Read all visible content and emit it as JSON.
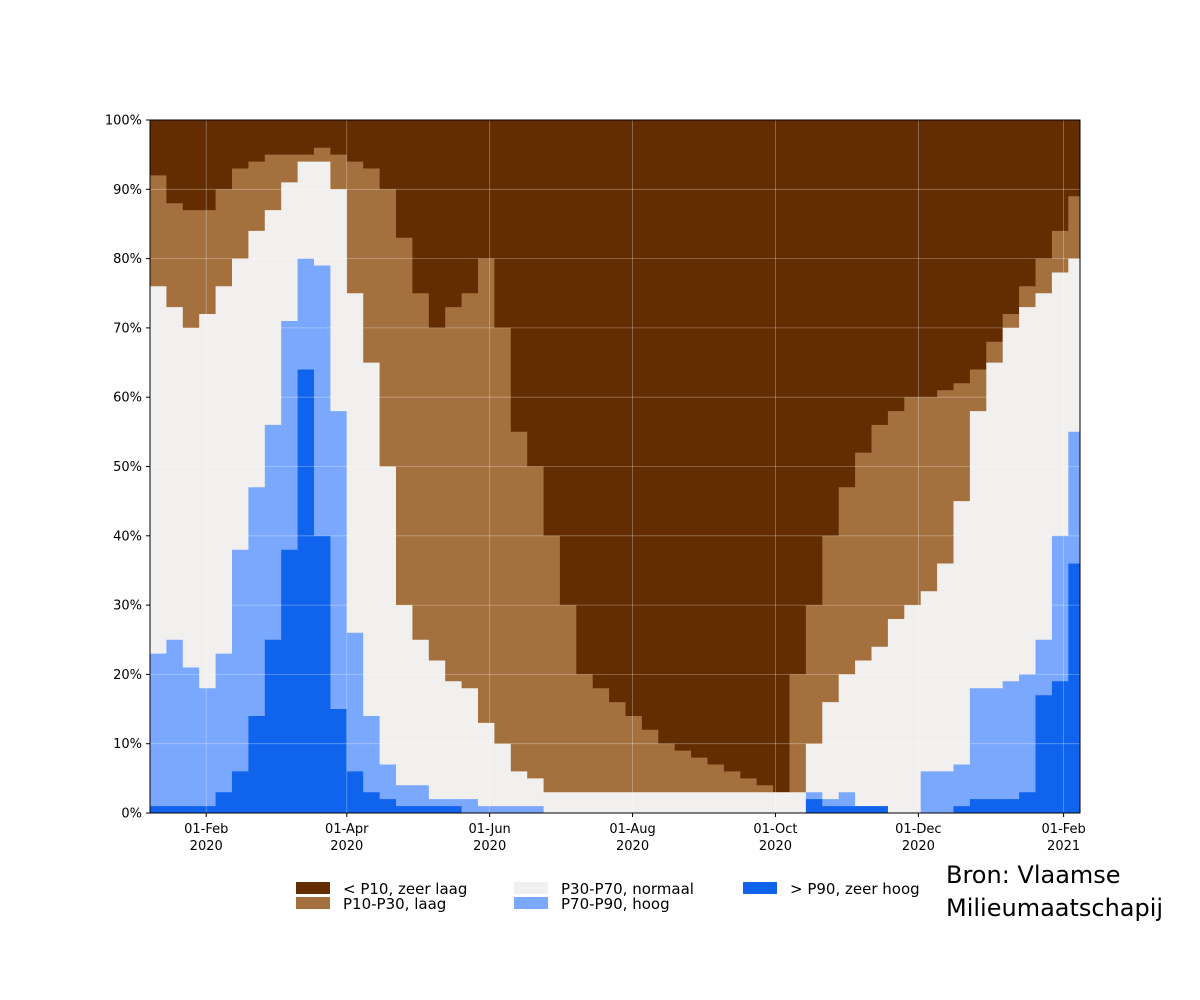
{
  "chart_data": {
    "type": "area",
    "stacked": true,
    "stepped": true,
    "x_start": "2020-01-08",
    "x_end": "2021-02-08",
    "ylim": [
      0,
      100
    ],
    "grid": true,
    "y_ticks": [
      "0%",
      "10%",
      "20%",
      "30%",
      "40%",
      "50%",
      "60%",
      "70%",
      "80%",
      "90%",
      "100%"
    ],
    "x_ticks": [
      {
        "date": "2020-02-01",
        "line1": "01-Feb",
        "line2": "2020"
      },
      {
        "date": "2020-04-01",
        "line1": "01-Apr",
        "line2": "2020"
      },
      {
        "date": "2020-06-01",
        "line1": "01-Jun",
        "line2": "2020"
      },
      {
        "date": "2020-08-01",
        "line1": "01-Aug",
        "line2": "2020"
      },
      {
        "date": "2020-10-01",
        "line1": "01-Oct",
        "line2": "2020"
      },
      {
        "date": "2020-12-01",
        "line1": "01-Dec",
        "line2": "2020"
      },
      {
        "date": "2021-02-01",
        "line1": "01-Feb",
        "line2": "2021"
      }
    ],
    "legend_placement": "bottom",
    "boundaries": {
      "x": [
        "2020-01-08",
        "2020-01-15",
        "2020-01-22",
        "2020-01-29",
        "2020-02-05",
        "2020-02-12",
        "2020-02-19",
        "2020-02-26",
        "2020-03-04",
        "2020-03-11",
        "2020-03-18",
        "2020-03-25",
        "2020-04-01",
        "2020-04-08",
        "2020-04-15",
        "2020-04-22",
        "2020-04-29",
        "2020-05-06",
        "2020-05-13",
        "2020-05-20",
        "2020-05-27",
        "2020-06-03",
        "2020-06-10",
        "2020-06-17",
        "2020-06-24",
        "2020-07-01",
        "2020-07-08",
        "2020-07-15",
        "2020-07-22",
        "2020-07-29",
        "2020-08-05",
        "2020-08-12",
        "2020-08-19",
        "2020-08-26",
        "2020-09-02",
        "2020-09-09",
        "2020-09-16",
        "2020-09-23",
        "2020-09-30",
        "2020-10-07",
        "2020-10-14",
        "2020-10-21",
        "2020-10-28",
        "2020-11-04",
        "2020-11-11",
        "2020-11-18",
        "2020-11-25",
        "2020-12-02",
        "2020-12-09",
        "2020-12-16",
        "2020-12-23",
        "2020-12-30",
        "2021-01-06",
        "2021-01-13",
        "2021-01-20",
        "2021-01-27",
        "2021-02-03",
        "2021-02-08"
      ],
      "gt_p90": [
        1,
        1,
        1,
        1,
        3,
        6,
        14,
        25,
        38,
        64,
        40,
        15,
        6,
        3,
        2,
        1,
        1,
        1,
        1,
        0,
        0,
        0,
        0,
        0,
        0,
        0,
        0,
        0,
        0,
        0,
        0,
        0,
        0,
        0,
        0,
        0,
        0,
        0,
        0,
        0,
        2,
        1,
        1,
        1,
        1,
        0,
        0,
        0,
        0,
        1,
        2,
        2,
        2,
        3,
        17,
        19,
        36,
        44
      ],
      "gt_p70": [
        23,
        25,
        21,
        18,
        23,
        38,
        47,
        56,
        71,
        80,
        79,
        58,
        26,
        14,
        7,
        4,
        4,
        2,
        2,
        2,
        1,
        1,
        1,
        1,
        0,
        0,
        0,
        0,
        0,
        0,
        0,
        0,
        0,
        0,
        0,
        0,
        0,
        0,
        0,
        0,
        3,
        2,
        3,
        1,
        1,
        0,
        0,
        6,
        6,
        7,
        18,
        18,
        19,
        20,
        25,
        40,
        55,
        60
      ],
      "gt_p30": [
        76,
        73,
        70,
        72,
        76,
        80,
        84,
        87,
        91,
        94,
        94,
        90,
        75,
        65,
        50,
        30,
        25,
        22,
        19,
        18,
        13,
        10,
        6,
        5,
        3,
        3,
        3,
        3,
        3,
        3,
        3,
        3,
        3,
        3,
        3,
        3,
        3,
        3,
        3,
        3,
        10,
        16,
        20,
        22,
        24,
        28,
        30,
        32,
        36,
        45,
        58,
        65,
        70,
        73,
        75,
        78,
        80,
        80
      ],
      "gt_p10": [
        92,
        88,
        87,
        87,
        90,
        93,
        94,
        95,
        95,
        95,
        96,
        95,
        94,
        93,
        90,
        83,
        75,
        70,
        73,
        75,
        80,
        70,
        55,
        50,
        40,
        30,
        20,
        18,
        16,
        14,
        12,
        10,
        9,
        8,
        7,
        6,
        5,
        4,
        3,
        20,
        30,
        40,
        47,
        52,
        56,
        58,
        60,
        60,
        61,
        62,
        64,
        68,
        72,
        76,
        80,
        84,
        89,
        92
      ]
    },
    "legend": [
      {
        "label": "< P10, zeer laag",
        "color": "#632c01"
      },
      {
        "label": "P10-P30, laag",
        "color": "#a3703e"
      },
      {
        "label": "P30-P70, normaal",
        "color": "#f2f0ef"
      },
      {
        "label": "P70-P90, hoog",
        "color": "#7aa8ff"
      },
      {
        "label": "> P90, zeer hoog",
        "color": "#1063ed"
      }
    ]
  },
  "source": {
    "line1": "Bron: Vlaamse",
    "line2": "Milieumaatschapij"
  }
}
